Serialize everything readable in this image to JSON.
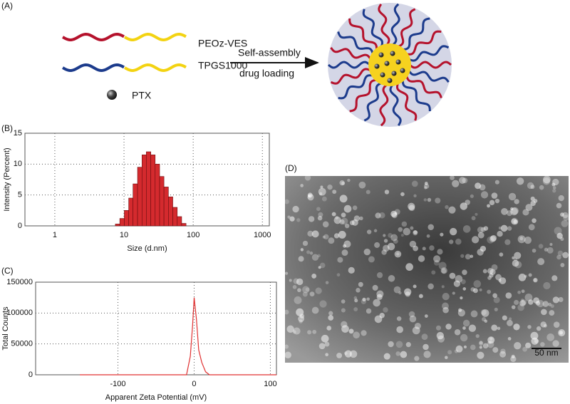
{
  "panel_labels": [
    "(A)",
    "(B)",
    "(C)",
    "(D)"
  ],
  "diagram": {
    "polymers": [
      "PEOz-VES",
      "TPGS1000"
    ],
    "drug": "PTX",
    "process": [
      "Self-assembly",
      "drug  loading"
    ]
  },
  "image": {
    "scale_bar": "50 nm"
  },
  "chart_data": [
    {
      "type": "histogram",
      "xlabel": "Size (d.nm)",
      "ylabel": "Intensity (Percent)",
      "bins": [
        7.5,
        8.7,
        10.1,
        11.7,
        13.5,
        15.7,
        18.2,
        21.0,
        24.4,
        28.2,
        32.7,
        37.8,
        43.8,
        50.7,
        58.8,
        68.1,
        78.8
      ],
      "values": [
        0.3,
        1.2,
        2.5,
        4.5,
        6.8,
        9.5,
        11.5,
        12.0,
        11.5,
        10.0,
        8.0,
        6.3,
        4.7,
        3.0,
        1.5,
        0.4
      ],
      "color": "#d42a2e",
      "log_x": true,
      "xlim": [
        0.37,
        1260
      ],
      "xticks": [
        1,
        10,
        100,
        1000
      ],
      "ylim": [
        0,
        15
      ],
      "yticks": [
        0,
        5,
        10,
        15
      ],
      "grid": true
    },
    {
      "type": "line",
      "xlabel": "Apparent Zeta Potential (mV)",
      "ylabel": "Total Counts",
      "x": [
        -150,
        -10,
        -5,
        -2,
        0,
        3,
        6,
        10,
        15,
        20,
        108
      ],
      "values": [
        0,
        0,
        30000,
        80000,
        125000,
        90000,
        40000,
        20000,
        5000,
        0,
        0
      ],
      "color": "#e03030",
      "log_x": false,
      "xlim": [
        -208,
        108
      ],
      "xticks": [
        -100,
        0,
        100
      ],
      "ylim": [
        0,
        150000
      ],
      "yticks": [
        0,
        50000,
        100000,
        150000
      ],
      "grid": true
    }
  ]
}
